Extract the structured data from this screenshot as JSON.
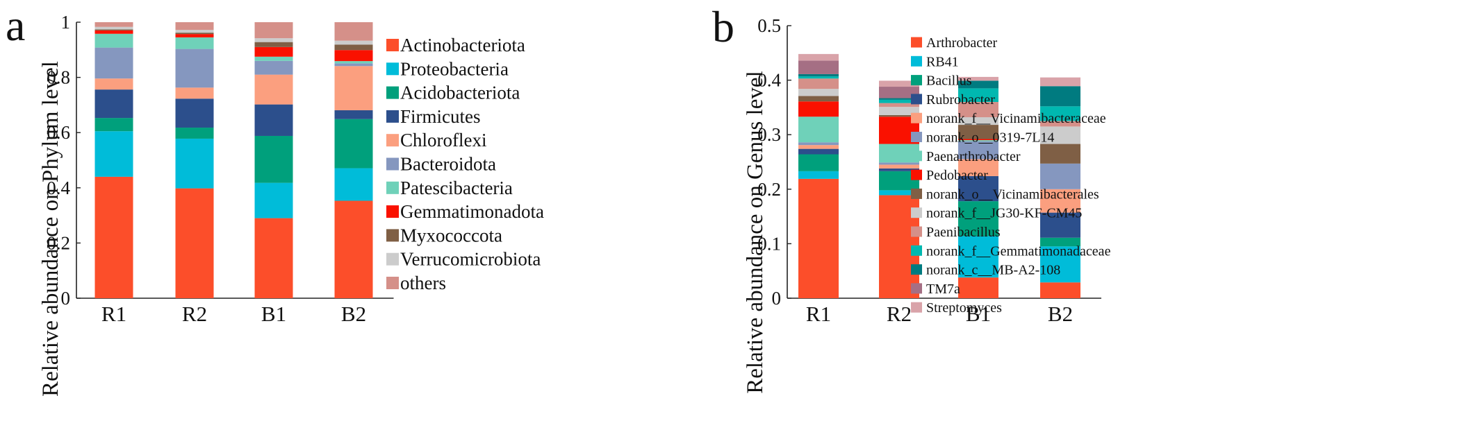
{
  "chart_data": [
    {
      "type": "bar",
      "stacked": true,
      "panel_label": "a",
      "title": "",
      "xlabel": "",
      "ylabel": "Relative abundance on Phylum level",
      "ylim": [
        0,
        1
      ],
      "yticks": [
        "0",
        "0.2",
        "0.4",
        "0.6",
        "0.8",
        "1"
      ],
      "categories": [
        "R1",
        "R2",
        "B1",
        "B2"
      ],
      "legend_position": "right",
      "series": [
        {
          "name": "Actinobacteriota",
          "color": "#fc4e2a",
          "values": [
            0.44,
            0.398,
            0.29,
            0.353
          ]
        },
        {
          "name": "Proteobacteria",
          "color": "#00bcd9",
          "values": [
            0.165,
            0.18,
            0.128,
            0.118
          ]
        },
        {
          "name": "Acidobacteriota",
          "color": "#00a07c",
          "values": [
            0.048,
            0.04,
            0.17,
            0.178
          ]
        },
        {
          "name": "Firmicutes",
          "color": "#2c4f8c",
          "values": [
            0.103,
            0.105,
            0.114,
            0.032
          ]
        },
        {
          "name": "Chloroflexi",
          "color": "#fb9f7f",
          "values": [
            0.04,
            0.04,
            0.108,
            0.16
          ]
        },
        {
          "name": "Bacteroidota",
          "color": "#8597bf",
          "values": [
            0.112,
            0.14,
            0.05,
            0.01
          ]
        },
        {
          "name": "Patescibacteria",
          "color": "#6fd1b9",
          "values": [
            0.05,
            0.042,
            0.015,
            0.008
          ]
        },
        {
          "name": "Gemmatimonadota",
          "color": "#fa1100",
          "values": [
            0.012,
            0.012,
            0.035,
            0.04
          ]
        },
        {
          "name": "Myxococcota",
          "color": "#7f5f45",
          "values": [
            0.004,
            0.005,
            0.018,
            0.02
          ]
        },
        {
          "name": "Verrucomicrobiota",
          "color": "#cccccc",
          "values": [
            0.009,
            0.01,
            0.014,
            0.014
          ]
        },
        {
          "name": "others",
          "color": "#d59089",
          "values": [
            0.017,
            0.028,
            0.058,
            0.067
          ]
        }
      ]
    },
    {
      "type": "bar",
      "stacked": true,
      "panel_label": "b",
      "title": "",
      "xlabel": "",
      "ylabel": "Relative abundance on Genus level",
      "ylim": [
        0,
        0.5
      ],
      "yticks": [
        "0",
        "0.1",
        "0.2",
        "0.3",
        "0.4",
        "0.5"
      ],
      "categories": [
        "R1",
        "R2",
        "B1",
        "B2"
      ],
      "legend_position": "right",
      "series": [
        {
          "name": "Arthrobacter",
          "color": "#fc4e2a",
          "values": [
            0.219,
            0.189,
            0.038,
            0.029
          ]
        },
        {
          "name": "RB41",
          "color": "#00bcd9",
          "values": [
            0.014,
            0.009,
            0.076,
            0.066
          ]
        },
        {
          "name": "Bacillus",
          "color": "#00a07c",
          "values": [
            0.031,
            0.035,
            0.064,
            0.016
          ]
        },
        {
          "name": "Rubrobacter",
          "color": "#2c4f8c",
          "values": [
            0.01,
            0.005,
            0.046,
            0.046
          ]
        },
        {
          "name": "norank_f__Vicinamibacteraceae",
          "color": "#fb9f7f",
          "values": [
            0.007,
            0.007,
            0.031,
            0.043
          ]
        },
        {
          "name": "norank_o__0319-7L14",
          "color": "#8597bf",
          "values": [
            0.005,
            0.004,
            0.033,
            0.047
          ]
        },
        {
          "name": "Paenarthrobacter",
          "color": "#6fd1b9",
          "values": [
            0.047,
            0.034,
            0.002,
            0.0
          ]
        },
        {
          "name": "Pedobacter",
          "color": "#fa1100",
          "values": [
            0.028,
            0.05,
            0.002,
            0.0
          ]
        },
        {
          "name": "norank_o__Vicinamibacterales",
          "color": "#7f5f45",
          "values": [
            0.01,
            0.003,
            0.026,
            0.036
          ]
        },
        {
          "name": "norank_f__JG30-KF-CM45",
          "color": "#cccccc",
          "values": [
            0.013,
            0.015,
            0.014,
            0.032
          ]
        },
        {
          "name": "Paenibacillus",
          "color": "#d59089",
          "values": [
            0.019,
            0.007,
            0.028,
            0.01
          ]
        },
        {
          "name": "norank_f__Gemmatimonadaceae",
          "color": "#00b8b0",
          "values": [
            0.004,
            0.006,
            0.025,
            0.027
          ]
        },
        {
          "name": "norank_c__MB-A2-108",
          "color": "#007b80",
          "values": [
            0.004,
            0.003,
            0.014,
            0.037
          ]
        },
        {
          "name": "TM7a",
          "color": "#a56f84",
          "values": [
            0.025,
            0.021,
            0.0,
            0.0
          ]
        },
        {
          "name": "Streptomyces",
          "color": "#d9a3a9",
          "values": [
            0.012,
            0.011,
            0.007,
            0.016
          ]
        }
      ]
    }
  ]
}
